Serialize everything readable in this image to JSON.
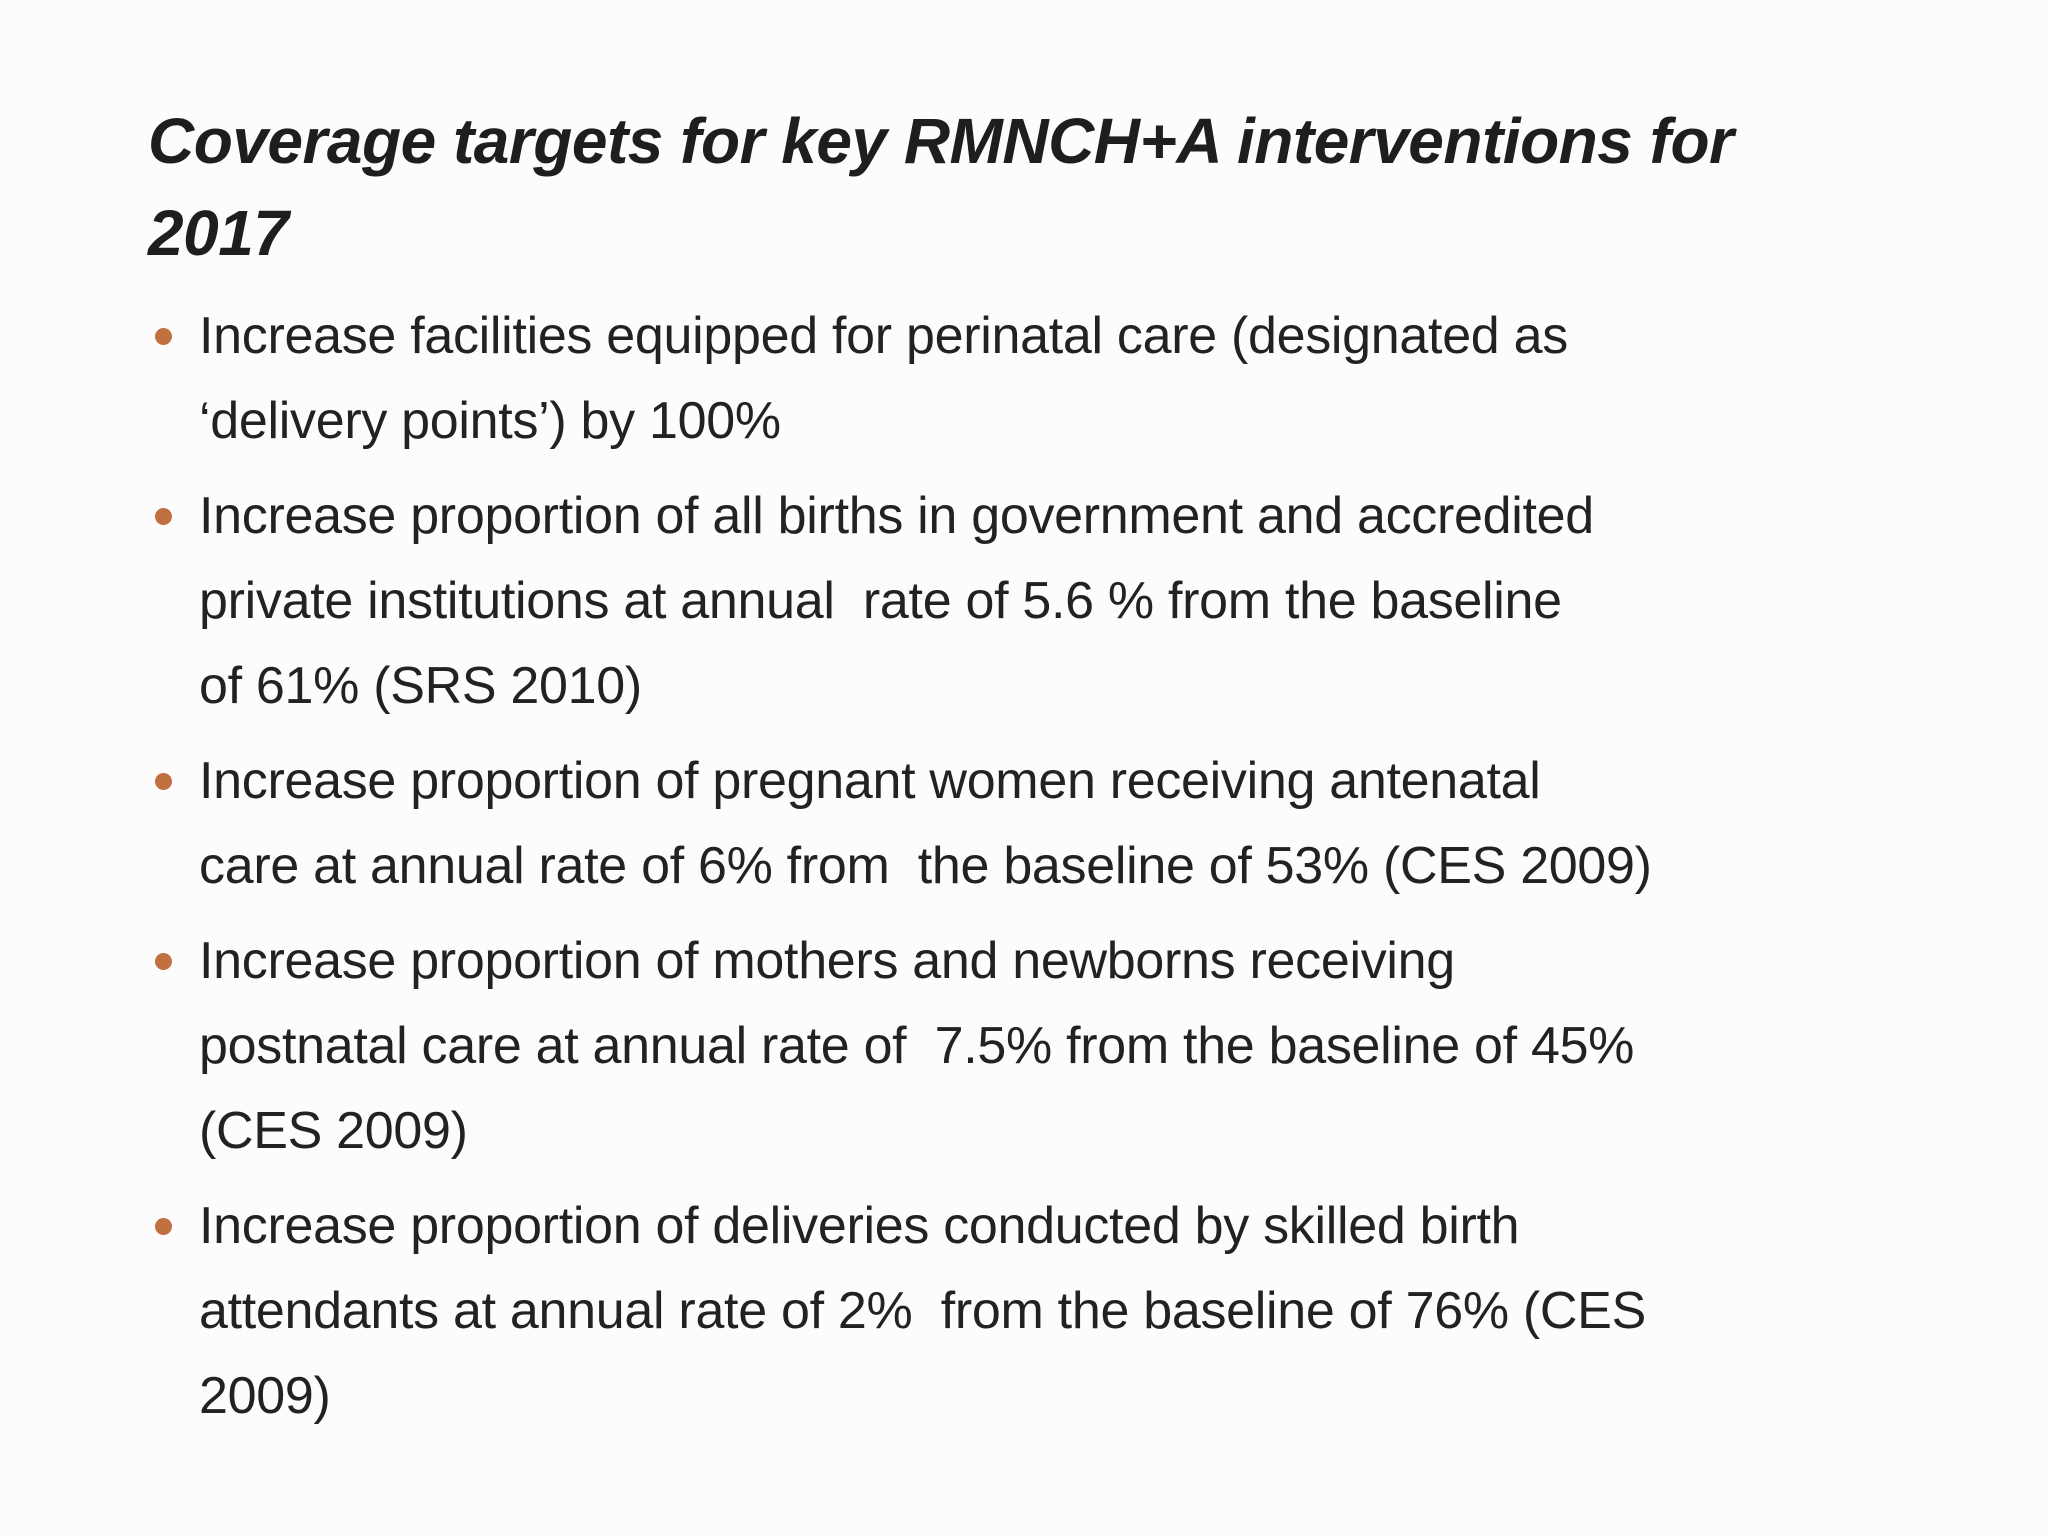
{
  "slide": {
    "title_lines": [
      "Coverage targets for key RMNCH+A interventions for",
      "2017"
    ],
    "bullet_color": "#c0713f",
    "bullets": [
      {
        "lines": [
          "Increase facilities equipped for perinatal care (designated as",
          "‘delivery points’) by 100%"
        ]
      },
      {
        "lines": [
          "Increase proportion of all births in government and accredited",
          "private institutions at annual  rate of 5.6 % from the baseline",
          "of 61% (SRS 2010)"
        ]
      },
      {
        "lines": [
          "Increase proportion of pregnant women receiving antenatal",
          "care at annual rate of 6% from  the baseline of 53% (CES 2009)"
        ]
      },
      {
        "lines": [
          "Increase proportion of mothers and newborns receiving",
          "postnatal care at annual rate of  7.5% from the baseline of 45%",
          "(CES 2009)"
        ]
      },
      {
        "lines": [
          "Increase proportion of deliveries conducted by skilled birth",
          "attendants at annual rate of 2%  from the baseline of 76% (CES",
          "2009)"
        ]
      }
    ]
  }
}
